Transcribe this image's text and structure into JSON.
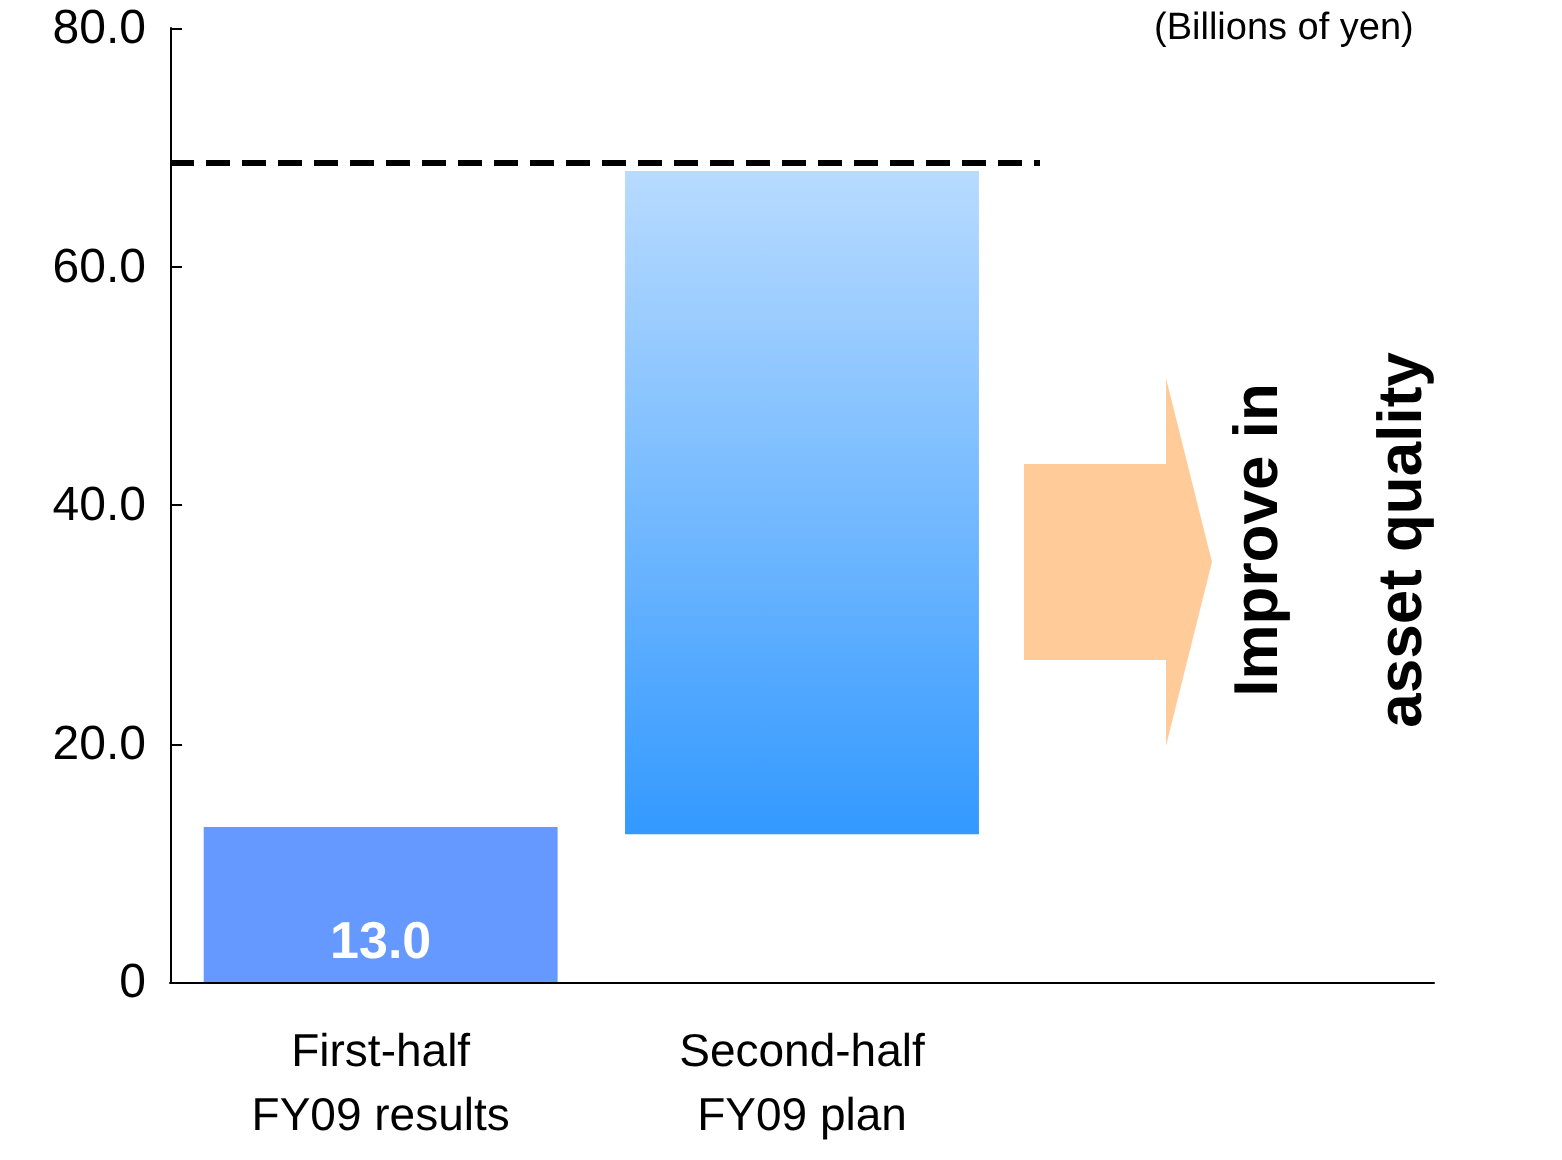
{
  "chart_data": {
    "type": "bar",
    "ylabel": "(Billions of yen)",
    "categories": [
      "First-half\nFY09 results",
      "Second-half\nFY09 plan",
      null
    ],
    "values": [
      13.0,
      55.6,
      null
    ],
    "base": [
      0,
      12.4,
      null
    ],
    "colors": [
      "#6699ff",
      "#3399ff",
      null
    ],
    "value_labels": [
      "13.0",
      null,
      null
    ],
    "ylim": [
      0,
      80
    ],
    "yticks": [
      0,
      {
        "value": 20,
        "label": "20.0"
      },
      {
        "value": 40,
        "label": "40.0"
      },
      {
        "value": 60,
        "label": "60.0"
      },
      {
        "value": 80,
        "label": "80.0"
      }
    ],
    "ref_lines": [
      {
        "axis": "y",
        "value": 68.8,
        "color": "#000000",
        "line_style": "dashed"
      }
    ],
    "annotations": [
      "Improve in\nasset quality"
    ],
    "grid": false
  }
}
